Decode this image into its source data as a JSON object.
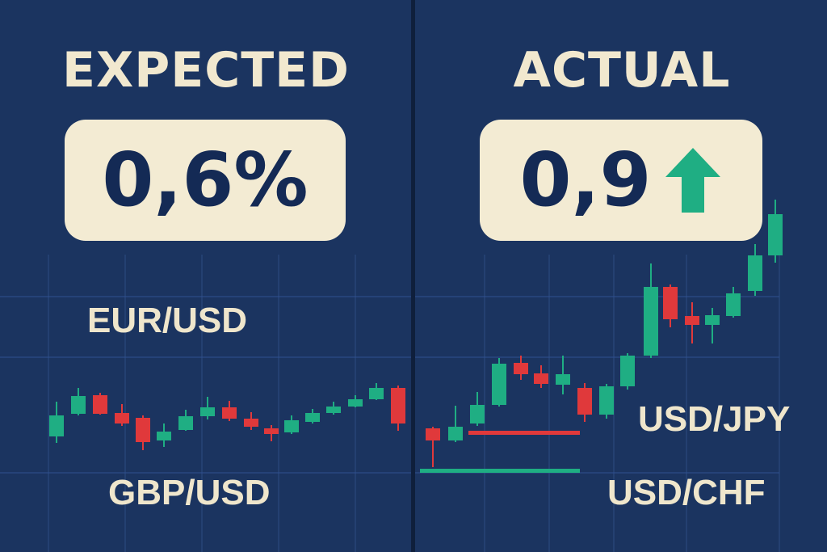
{
  "panels": {
    "expected": {
      "heading": "EXPECTED",
      "value": "0,6%"
    },
    "actual": {
      "heading": "ACTUAL",
      "value": "0,9",
      "indicator": "up-arrow-icon"
    }
  },
  "pairs": {
    "eur_usd": "EUR/USD",
    "gbp_usd": "GBP/USD",
    "usd_jpy": "USD/JPY",
    "usd_chf": "USD/CHF"
  },
  "colors": {
    "background": "#1b3460",
    "card": "#f3ebd3",
    "card_text": "#142a55",
    "heading_text": "#f1e8cf",
    "bullish": "#1fae83",
    "bearish": "#e0393b"
  }
}
